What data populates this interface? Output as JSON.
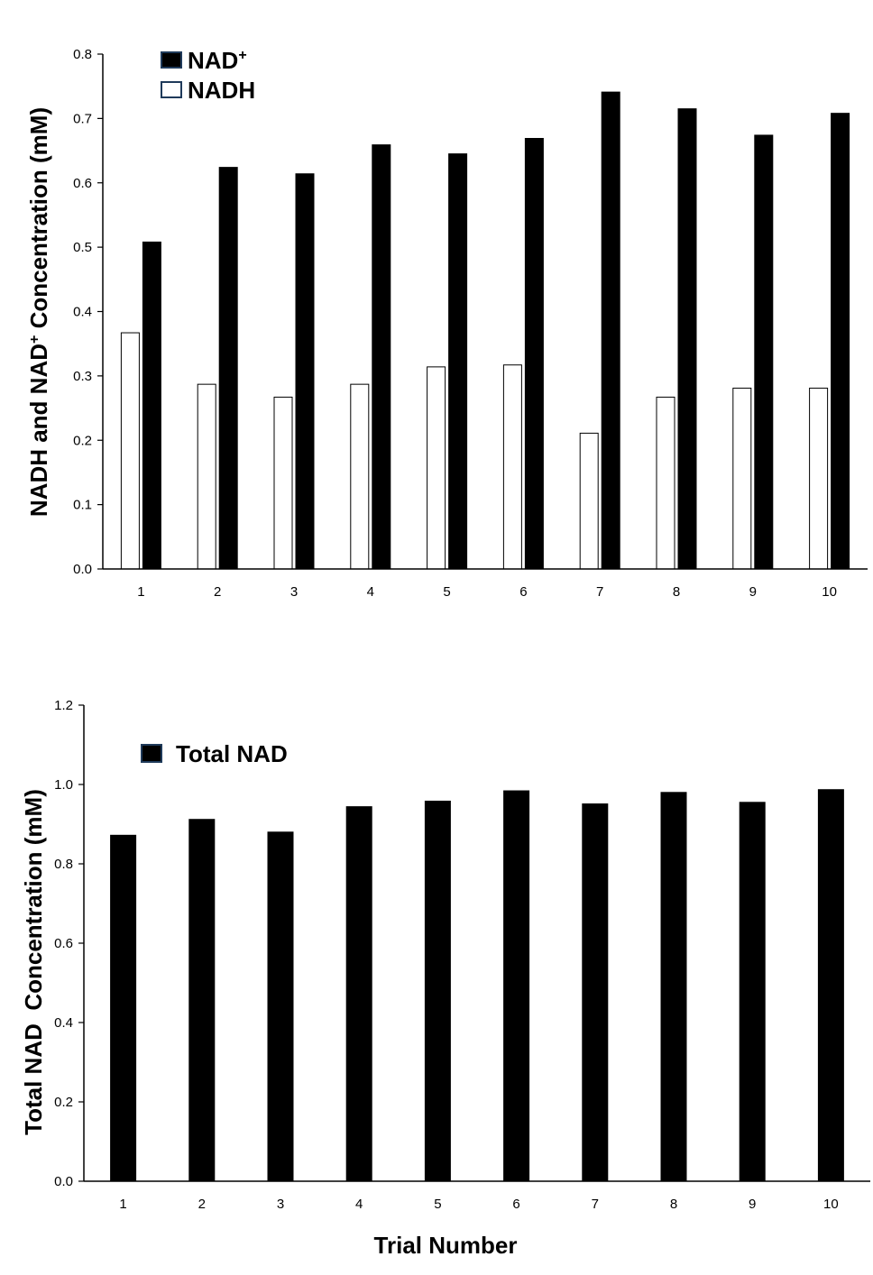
{
  "chart_data": [
    {
      "type": "bar",
      "categories": [
        "1",
        "2",
        "3",
        "4",
        "5",
        "6",
        "7",
        "8",
        "9",
        "10"
      ],
      "series": [
        {
          "name": "NADH",
          "color": "#ffffff",
          "values": [
            0.367,
            0.287,
            0.267,
            0.287,
            0.314,
            0.317,
            0.211,
            0.267,
            0.281,
            0.281
          ]
        },
        {
          "name": "NAD+",
          "color": "#000000",
          "values": [
            0.508,
            0.624,
            0.614,
            0.659,
            0.645,
            0.669,
            0.741,
            0.715,
            0.674,
            0.708
          ]
        }
      ],
      "ylabel": "NADH and NAD+ Concentration (mM)",
      "ylabel_parts": [
        "NADH and NAD",
        "+",
        " Concentration (mM)"
      ],
      "ylim": [
        0,
        0.8
      ],
      "yticks": [
        "0.0",
        "0.1",
        "0.2",
        "0.3",
        "0.4",
        "0.5",
        "0.6",
        "0.7",
        "0.8"
      ],
      "legend": [
        {
          "label": "NAD",
          "sup": "+",
          "color": "#000000"
        },
        {
          "label": "NADH",
          "sup": "",
          "color": "#ffffff"
        }
      ],
      "legend_position": "top-left",
      "grid": false
    },
    {
      "type": "bar",
      "categories": [
        "1",
        "2",
        "3",
        "4",
        "5",
        "6",
        "7",
        "8",
        "9",
        "10"
      ],
      "series": [
        {
          "name": "Total NAD",
          "color": "#000000",
          "values": [
            0.872,
            0.912,
            0.88,
            0.944,
            0.958,
            0.984,
            0.951,
            0.98,
            0.955,
            0.987
          ]
        }
      ],
      "ylabel": "Total NAD  Concentration (mM)",
      "xlabel": "Trial Number",
      "ylim": [
        0,
        1.2
      ],
      "yticks": [
        "0.0",
        "0.2",
        "0.4",
        "0.6",
        "0.8",
        "1.0",
        "1.2"
      ],
      "legend": [
        {
          "label": "Total NAD",
          "sup": "",
          "color": "#000000"
        }
      ],
      "legend_position": "top-left",
      "grid": false
    }
  ]
}
